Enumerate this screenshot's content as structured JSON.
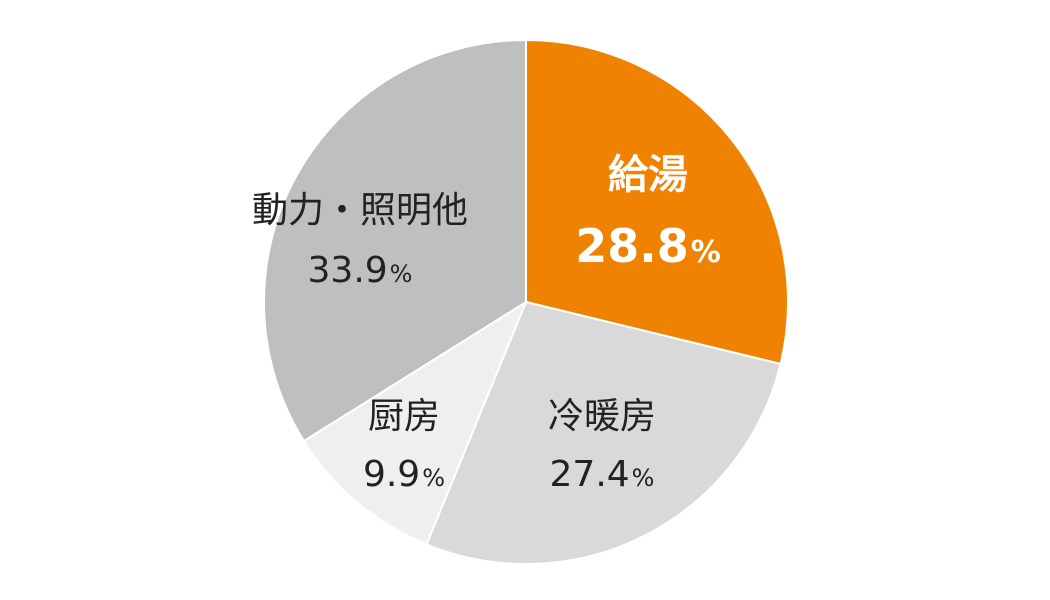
{
  "chart_data": {
    "type": "pie",
    "unit": "%",
    "start": "12 o'clock",
    "direction": "clockwise",
    "slices": [
      {
        "label": "給湯",
        "value": 28.8,
        "value_text": "28.8",
        "color": "#ef8200",
        "highlight": true
      },
      {
        "label": "冷暖房",
        "value": 27.4,
        "value_text": "27.4",
        "color": "#d9d9d9",
        "highlight": false
      },
      {
        "label": "厨房",
        "value": 9.9,
        "value_text": "9.9",
        "color": "#efefef",
        "highlight": false
      },
      {
        "label": "動力・照明他",
        "value": 33.9,
        "value_text": "33.9",
        "color": "#bfbfbf",
        "highlight": false
      }
    ]
  }
}
